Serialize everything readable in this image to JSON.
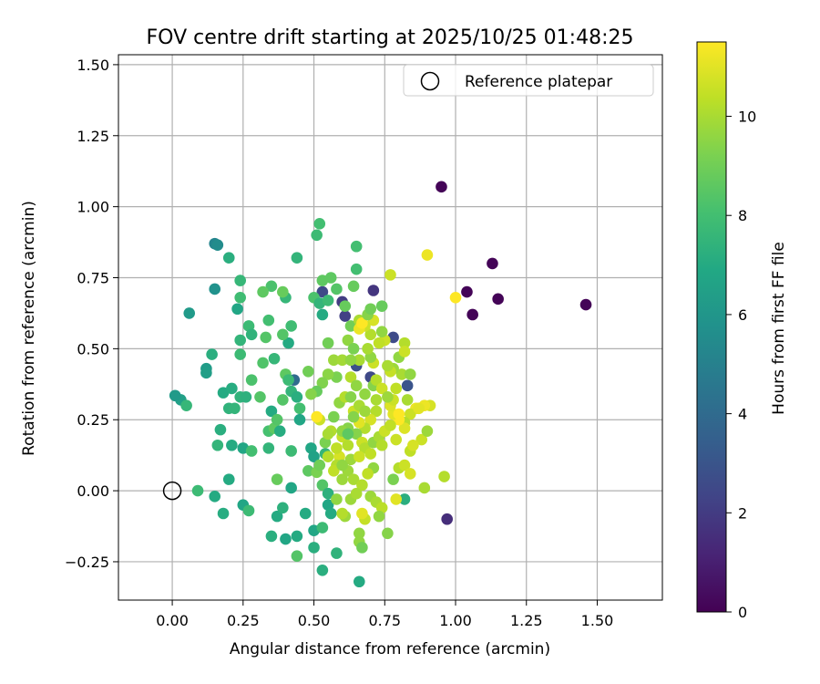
{
  "chart_data": {
    "type": "scatter",
    "title": "FOV centre drift starting at 2025/10/25 01:48:25",
    "xlabel": "Angular distance from reference (arcmin)",
    "ylabel": "Rotation from reference (arcmin)",
    "xlim": [
      -0.19,
      1.73
    ],
    "ylim": [
      -0.385,
      1.535
    ],
    "xticks": [
      0.0,
      0.25,
      0.5,
      0.75,
      1.0,
      1.25,
      1.5
    ],
    "xtick_labels": [
      "0.00",
      "0.25",
      "0.50",
      "0.75",
      "1.00",
      "1.25",
      "1.50"
    ],
    "yticks": [
      -0.25,
      0.0,
      0.25,
      0.5,
      0.75,
      1.0,
      1.25,
      1.5
    ],
    "ytick_labels": [
      "−0.25",
      "0.00",
      "0.25",
      "0.50",
      "0.75",
      "1.00",
      "1.25",
      "1.50"
    ],
    "grid": true,
    "legend": {
      "position": "top-right",
      "label": "Reference platepar"
    },
    "reference_point": [
      0.0,
      0.0
    ],
    "colorbar": {
      "label": "Hours from first FF file",
      "colormap": "viridis",
      "range": [
        0,
        11.5
      ],
      "ticks": [
        0,
        2,
        4,
        6,
        8,
        10
      ],
      "tick_labels": [
        "0",
        "2",
        "4",
        "6",
        "8",
        "10"
      ]
    },
    "points": [
      [
        0.95,
        1.07,
        0.1
      ],
      [
        1.13,
        0.8,
        0.1
      ],
      [
        1.04,
        0.7,
        0.1
      ],
      [
        1.06,
        0.62,
        0.1
      ],
      [
        1.15,
        0.675,
        0.1
      ],
      [
        1.46,
        0.655,
        0.1
      ],
      [
        0.97,
        -0.1,
        1.5
      ],
      [
        0.71,
        0.705,
        1.8
      ],
      [
        0.6,
        0.665,
        2.0
      ],
      [
        0.61,
        0.615,
        2.2
      ],
      [
        0.53,
        0.7,
        2.5
      ],
      [
        0.65,
        0.44,
        2.8
      ],
      [
        0.7,
        0.4,
        2.5
      ],
      [
        0.83,
        0.37,
        3.0
      ],
      [
        0.78,
        0.54,
        2.6
      ],
      [
        0.43,
        0.39,
        4.0
      ],
      [
        0.15,
        0.87,
        5.2
      ],
      [
        0.16,
        0.865,
        5.5
      ],
      [
        0.15,
        0.71,
        5.8
      ],
      [
        0.06,
        0.625,
        6.2
      ],
      [
        0.03,
        0.32,
        6.5
      ],
      [
        0.01,
        0.335,
        6.2
      ],
      [
        0.12,
        0.43,
        6.3
      ],
      [
        0.12,
        0.415,
        6.4
      ],
      [
        0.14,
        0.48,
        7.2
      ],
      [
        0.05,
        0.3,
        7.6
      ],
      [
        0.16,
        0.16,
        7.5
      ],
      [
        0.18,
        0.345,
        7.0
      ],
      [
        0.2,
        0.29,
        7.4
      ],
      [
        0.22,
        0.29,
        7.5
      ],
      [
        0.21,
        0.36,
        7.1
      ],
      [
        0.21,
        0.16,
        7.0
      ],
      [
        0.17,
        0.215,
        7.2
      ],
      [
        0.18,
        -0.08,
        7.1
      ],
      [
        0.2,
        0.04,
        7.0
      ],
      [
        0.15,
        -0.02,
        7.0
      ],
      [
        0.09,
        0.0,
        7.8
      ],
      [
        0.25,
        -0.05,
        6.8
      ],
      [
        0.27,
        -0.07,
        7.8
      ],
      [
        0.25,
        0.15,
        6.8
      ],
      [
        0.24,
        0.33,
        7.4
      ],
      [
        0.26,
        0.33,
        7.3
      ],
      [
        0.24,
        0.48,
        7.8
      ],
      [
        0.24,
        0.53,
        7.5
      ],
      [
        0.27,
        0.58,
        7.8
      ],
      [
        0.28,
        0.55,
        7.4
      ],
      [
        0.23,
        0.64,
        6.8
      ],
      [
        0.24,
        0.68,
        7.9
      ],
      [
        0.24,
        0.74,
        7.6
      ],
      [
        0.2,
        0.82,
        7.2
      ],
      [
        0.28,
        0.39,
        8.2
      ],
      [
        0.28,
        0.14,
        8.0
      ],
      [
        0.31,
        0.33,
        8.4
      ],
      [
        0.32,
        0.45,
        8.3
      ],
      [
        0.33,
        0.54,
        8.4
      ],
      [
        0.34,
        0.6,
        8.0
      ],
      [
        0.35,
        0.72,
        8.2
      ],
      [
        0.32,
        0.7,
        8.6
      ],
      [
        0.35,
        0.28,
        7.0
      ],
      [
        0.34,
        0.21,
        8.1
      ],
      [
        0.36,
        0.22,
        8.6
      ],
      [
        0.37,
        0.25,
        8.4
      ],
      [
        0.38,
        0.21,
        7.1
      ],
      [
        0.34,
        0.15,
        7.5
      ],
      [
        0.35,
        -0.16,
        7.2
      ],
      [
        0.37,
        0.04,
        8.8
      ],
      [
        0.37,
        -0.09,
        7.0
      ],
      [
        0.39,
        -0.06,
        7.3
      ],
      [
        0.4,
        -0.17,
        6.8
      ],
      [
        0.42,
        0.01,
        6.8
      ],
      [
        0.44,
        -0.23,
        8.4
      ],
      [
        0.44,
        -0.16,
        7.0
      ],
      [
        0.39,
        0.32,
        8.4
      ],
      [
        0.4,
        0.41,
        8.6
      ],
      [
        0.41,
        0.39,
        7.8
      ],
      [
        0.42,
        0.35,
        7.5
      ],
      [
        0.44,
        0.33,
        7.2
      ],
      [
        0.45,
        0.29,
        8.0
      ],
      [
        0.45,
        0.25,
        6.8
      ],
      [
        0.42,
        0.14,
        7.8
      ],
      [
        0.36,
        0.465,
        7.6
      ],
      [
        0.41,
        0.52,
        7.0
      ],
      [
        0.42,
        0.58,
        7.9
      ],
      [
        0.39,
        0.55,
        8.4
      ],
      [
        0.4,
        0.68,
        7.6
      ],
      [
        0.39,
        0.7,
        8.8
      ],
      [
        0.44,
        0.82,
        7.5
      ],
      [
        0.48,
        0.07,
        8.6
      ],
      [
        0.47,
        -0.08,
        7.0
      ],
      [
        0.49,
        0.15,
        6.8
      ],
      [
        0.5,
        0.12,
        6.6
      ],
      [
        0.5,
        -0.14,
        6.8
      ],
      [
        0.5,
        -0.2,
        7.2
      ],
      [
        0.51,
        0.065,
        9.2
      ],
      [
        0.52,
        0.09,
        9.0
      ],
      [
        0.53,
        0.02,
        8.4
      ],
      [
        0.54,
        0.13,
        7.5
      ],
      [
        0.55,
        -0.01,
        7.3
      ],
      [
        0.53,
        -0.13,
        7.8
      ],
      [
        0.55,
        -0.05,
        6.8
      ],
      [
        0.56,
        -0.08,
        7.0
      ],
      [
        0.53,
        -0.28,
        7.2
      ],
      [
        0.58,
        -0.22,
        7.4
      ],
      [
        0.66,
        -0.32,
        7.0
      ],
      [
        0.5,
        0.68,
        8.2
      ],
      [
        0.51,
        0.9,
        7.8
      ],
      [
        0.52,
        0.94,
        8.0
      ],
      [
        0.53,
        0.74,
        8.6
      ],
      [
        0.52,
        0.66,
        7.5
      ],
      [
        0.53,
        0.62,
        7.0
      ],
      [
        0.55,
        0.67,
        7.8
      ],
      [
        0.56,
        0.75,
        8.6
      ],
      [
        0.58,
        0.71,
        8.4
      ],
      [
        0.61,
        0.65,
        8.8
      ],
      [
        0.63,
        0.58,
        9.0
      ],
      [
        0.64,
        0.72,
        8.8
      ],
      [
        0.65,
        0.86,
        8.0
      ],
      [
        0.65,
        0.78,
        8.0
      ],
      [
        0.66,
        0.6,
        10.0
      ],
      [
        0.62,
        0.53,
        9.6
      ],
      [
        0.55,
        0.52,
        9.0
      ],
      [
        0.57,
        0.46,
        9.8
      ],
      [
        0.6,
        0.46,
        9.9
      ],
      [
        0.58,
        0.4,
        9.2
      ],
      [
        0.55,
        0.41,
        9.5
      ],
      [
        0.53,
        0.38,
        9.3
      ],
      [
        0.51,
        0.35,
        8.8
      ],
      [
        0.48,
        0.42,
        9.0
      ],
      [
        0.49,
        0.34,
        9.4
      ],
      [
        0.52,
        0.25,
        10.6
      ],
      [
        0.51,
        0.26,
        11.5
      ],
      [
        0.56,
        0.21,
        10.2
      ],
      [
        0.57,
        0.26,
        9.2
      ],
      [
        0.59,
        0.31,
        9.6
      ],
      [
        0.61,
        0.33,
        10.2
      ],
      [
        0.63,
        0.33,
        9.4
      ],
      [
        0.64,
        0.28,
        10.6
      ],
      [
        0.62,
        0.22,
        9.4
      ],
      [
        0.6,
        0.19,
        10.5
      ],
      [
        0.59,
        0.12,
        10.8
      ],
      [
        0.58,
        0.09,
        10.2
      ],
      [
        0.57,
        0.07,
        10.4
      ],
      [
        0.6,
        0.04,
        9.8
      ],
      [
        0.62,
        0.07,
        9.8
      ],
      [
        0.64,
        0.04,
        10.0
      ],
      [
        0.61,
        -0.09,
        9.8
      ],
      [
        0.58,
        -0.03,
        9.6
      ],
      [
        0.63,
        -0.03,
        9.8
      ],
      [
        0.6,
        -0.08,
        10.2
      ],
      [
        0.66,
        -0.18,
        9.6
      ],
      [
        0.67,
        -0.2,
        9.0
      ],
      [
        0.66,
        -0.15,
        9.6
      ],
      [
        0.68,
        -0.1,
        10.5
      ],
      [
        0.67,
        -0.08,
        11.0
      ],
      [
        0.7,
        -0.02,
        9.8
      ],
      [
        0.72,
        -0.04,
        10.0
      ],
      [
        0.74,
        -0.06,
        10.3
      ],
      [
        0.73,
        -0.09,
        9.6
      ],
      [
        0.76,
        -0.15,
        9.4
      ],
      [
        0.78,
        0.04,
        9.2
      ],
      [
        0.8,
        0.08,
        10.2
      ],
      [
        0.82,
        0.09,
        10.6
      ],
      [
        0.84,
        0.06,
        10.8
      ],
      [
        0.82,
        -0.03,
        7.2
      ],
      [
        0.79,
        -0.03,
        11.0
      ],
      [
        0.89,
        0.01,
        10.0
      ],
      [
        0.96,
        0.05,
        10.2
      ],
      [
        0.88,
        0.18,
        10.6
      ],
      [
        0.84,
        0.14,
        10.4
      ],
      [
        0.85,
        0.16,
        10.8
      ],
      [
        0.9,
        0.21,
        9.8
      ],
      [
        0.91,
        0.3,
        10.8
      ],
      [
        0.89,
        0.3,
        11.2
      ],
      [
        0.86,
        0.29,
        11.2
      ],
      [
        0.84,
        0.27,
        10.6
      ],
      [
        0.82,
        0.24,
        10.2
      ],
      [
        0.82,
        0.22,
        10.9
      ],
      [
        0.8,
        0.25,
        11.5
      ],
      [
        0.78,
        0.27,
        11.0
      ],
      [
        0.77,
        0.3,
        10.9
      ],
      [
        0.78,
        0.32,
        10.6
      ],
      [
        0.79,
        0.36,
        10.4
      ],
      [
        0.81,
        0.41,
        10.0
      ],
      [
        0.78,
        0.43,
        9.8
      ],
      [
        0.8,
        0.47,
        9.6
      ],
      [
        0.82,
        0.52,
        10.2
      ],
      [
        0.82,
        0.49,
        10.6
      ],
      [
        0.77,
        0.42,
        10.5
      ],
      [
        0.76,
        0.44,
        10.0
      ],
      [
        0.75,
        0.53,
        10.6
      ],
      [
        0.74,
        0.56,
        9.6
      ],
      [
        0.73,
        0.52,
        10.4
      ],
      [
        0.71,
        0.45,
        10.6
      ],
      [
        0.7,
        0.47,
        9.6
      ],
      [
        0.69,
        0.5,
        10.0
      ],
      [
        0.7,
        0.55,
        10.2
      ],
      [
        0.71,
        0.6,
        10.8
      ],
      [
        0.68,
        0.58,
        10.6
      ],
      [
        0.66,
        0.57,
        11.2
      ],
      [
        0.67,
        0.59,
        11.5
      ],
      [
        0.69,
        0.62,
        9.4
      ],
      [
        0.7,
        0.64,
        9.0
      ],
      [
        0.74,
        0.65,
        8.8
      ],
      [
        0.77,
        0.76,
        10.6
      ],
      [
        0.66,
        0.46,
        10.0
      ],
      [
        0.64,
        0.5,
        9.2
      ],
      [
        0.63,
        0.46,
        9.6
      ],
      [
        0.63,
        0.4,
        10.2
      ],
      [
        0.65,
        0.37,
        9.6
      ],
      [
        0.68,
        0.34,
        9.6
      ],
      [
        0.71,
        0.37,
        9.4
      ],
      [
        0.72,
        0.39,
        10.2
      ],
      [
        0.74,
        0.36,
        10.6
      ],
      [
        0.76,
        0.33,
        9.8
      ],
      [
        0.72,
        0.32,
        10.0
      ],
      [
        0.72,
        0.28,
        10.2
      ],
      [
        0.7,
        0.25,
        10.8
      ],
      [
        0.68,
        0.22,
        10.2
      ],
      [
        0.66,
        0.24,
        11.0
      ],
      [
        0.65,
        0.2,
        9.4
      ],
      [
        0.67,
        0.17,
        10.6
      ],
      [
        0.68,
        0.15,
        10.2
      ],
      [
        0.7,
        0.13,
        10.4
      ],
      [
        0.71,
        0.17,
        9.6
      ],
      [
        0.73,
        0.19,
        10.0
      ],
      [
        0.75,
        0.21,
        10.6
      ],
      [
        0.77,
        0.23,
        10.4
      ],
      [
        0.79,
        0.18,
        10.6
      ],
      [
        0.74,
        0.16,
        10.2
      ],
      [
        0.71,
        0.08,
        9.6
      ],
      [
        0.69,
        0.06,
        10.4
      ],
      [
        0.67,
        0.02,
        10.2
      ],
      [
        0.65,
        -0.01,
        10.0
      ],
      [
        0.63,
        0.11,
        9.8
      ],
      [
        0.62,
        0.16,
        10.2
      ],
      [
        0.66,
        0.12,
        10.6
      ],
      [
        0.6,
        0.09,
        9.6
      ],
      [
        0.55,
        0.12,
        10.2
      ],
      [
        0.54,
        0.17,
        9.2
      ],
      [
        0.55,
        0.2,
        10.0
      ],
      [
        0.58,
        0.15,
        10.4
      ],
      [
        0.6,
        0.21,
        9.6
      ],
      [
        0.62,
        0.2,
        8.6
      ],
      [
        0.64,
        0.26,
        9.4
      ],
      [
        0.66,
        0.3,
        10.0
      ],
      [
        0.68,
        0.28,
        9.8
      ],
      [
        0.83,
        0.32,
        10.0
      ],
      [
        0.84,
        0.41,
        9.6
      ],
      [
        0.87,
        0.29,
        11.0
      ],
      [
        0.9,
        0.83,
        11.2
      ],
      [
        1.0,
        0.68,
        11.5
      ],
      [
        0.8,
        0.27,
        11.5
      ]
    ]
  }
}
